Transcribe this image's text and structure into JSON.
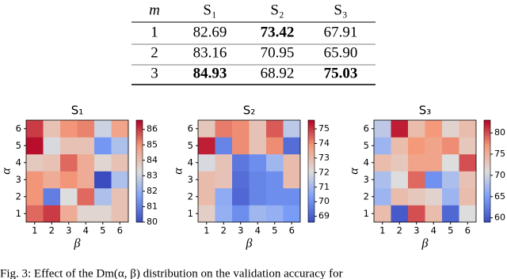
{
  "table": {
    "header": [
      "m",
      "S₁",
      "S₂",
      "S₃"
    ],
    "rows": [
      [
        "1",
        "82.69",
        "73.42",
        "67.91"
      ],
      [
        "2",
        "83.16",
        "70.95",
        "65.90"
      ],
      [
        "3",
        "84.93",
        "68.92",
        "75.03"
      ]
    ],
    "bold_cells": [
      [
        0,
        2
      ],
      [
        2,
        1
      ],
      [
        2,
        3
      ]
    ]
  },
  "heatmaps": [
    {
      "title": "S₁",
      "xlabel": "β",
      "ylabel": "α",
      "xticks": [
        1,
        2,
        3,
        4,
        5,
        6
      ],
      "yticks": [
        1,
        2,
        3,
        4,
        5,
        6
      ],
      "clim": [
        80,
        86.6
      ],
      "cbar_ticks": [
        80,
        81,
        82,
        83,
        84,
        85,
        86
      ],
      "values": [
        [
          85.5,
          86,
          84.5,
          83.5,
          83.5,
          84
        ],
        [
          85,
          81,
          83.3,
          85.5,
          82.5,
          84
        ],
        [
          85,
          84.5,
          85,
          84.5,
          80,
          82.5
        ],
        [
          83.8,
          84,
          85.5,
          84.5,
          83.5,
          84
        ],
        [
          86.5,
          83.2,
          84,
          84,
          81.5,
          82.5
        ],
        [
          86,
          84,
          85,
          85.2,
          83,
          84.7
        ]
      ]
    },
    {
      "title": "S₂",
      "xlabel": "β",
      "ylabel": "α",
      "xticks": [
        1,
        2,
        3,
        4,
        5,
        6
      ],
      "yticks": [
        1,
        2,
        3,
        4,
        5,
        6
      ],
      "clim": [
        68.6,
        75.6
      ],
      "cbar_ticks": [
        69,
        70,
        71,
        72,
        73,
        74,
        75
      ],
      "values": [
        [
          72.5,
          70.8,
          70,
          71,
          70.8,
          70.3
        ],
        [
          73,
          70.7,
          69.2,
          69.8,
          70,
          70
        ],
        [
          73,
          72.8,
          69.3,
          69.8,
          70,
          73
        ],
        [
          72,
          72.8,
          69.5,
          70,
          71,
          73
        ],
        [
          75.3,
          69.8,
          74,
          72.8,
          74,
          69.3
        ],
        [
          72.7,
          74.2,
          74,
          72.8,
          74.6,
          71.5
        ]
      ]
    },
    {
      "title": "S₃",
      "xlabel": "β",
      "ylabel": "α",
      "xticks": [
        1,
        2,
        3,
        4,
        5,
        6
      ],
      "yticks": [
        1,
        2,
        3,
        4,
        5,
        6
      ],
      "clim": [
        59,
        83
      ],
      "cbar_ticks": [
        60,
        65,
        70,
        75,
        80
      ],
      "values": [
        [
          74,
          60,
          80,
          74,
          61,
          71
        ],
        [
          67,
          74,
          73,
          72,
          67,
          74
        ],
        [
          68,
          71,
          79,
          64,
          68,
          73.5
        ],
        [
          74,
          73,
          76,
          76,
          71,
          80
        ],
        [
          67,
          74,
          77,
          76,
          77.5,
          73
        ],
        [
          69,
          82,
          74,
          77,
          72,
          74
        ]
      ]
    }
  ],
  "caption": "Fig. 3: Effect of the Dm(α, β) distribution on the validation accuracy for"
}
